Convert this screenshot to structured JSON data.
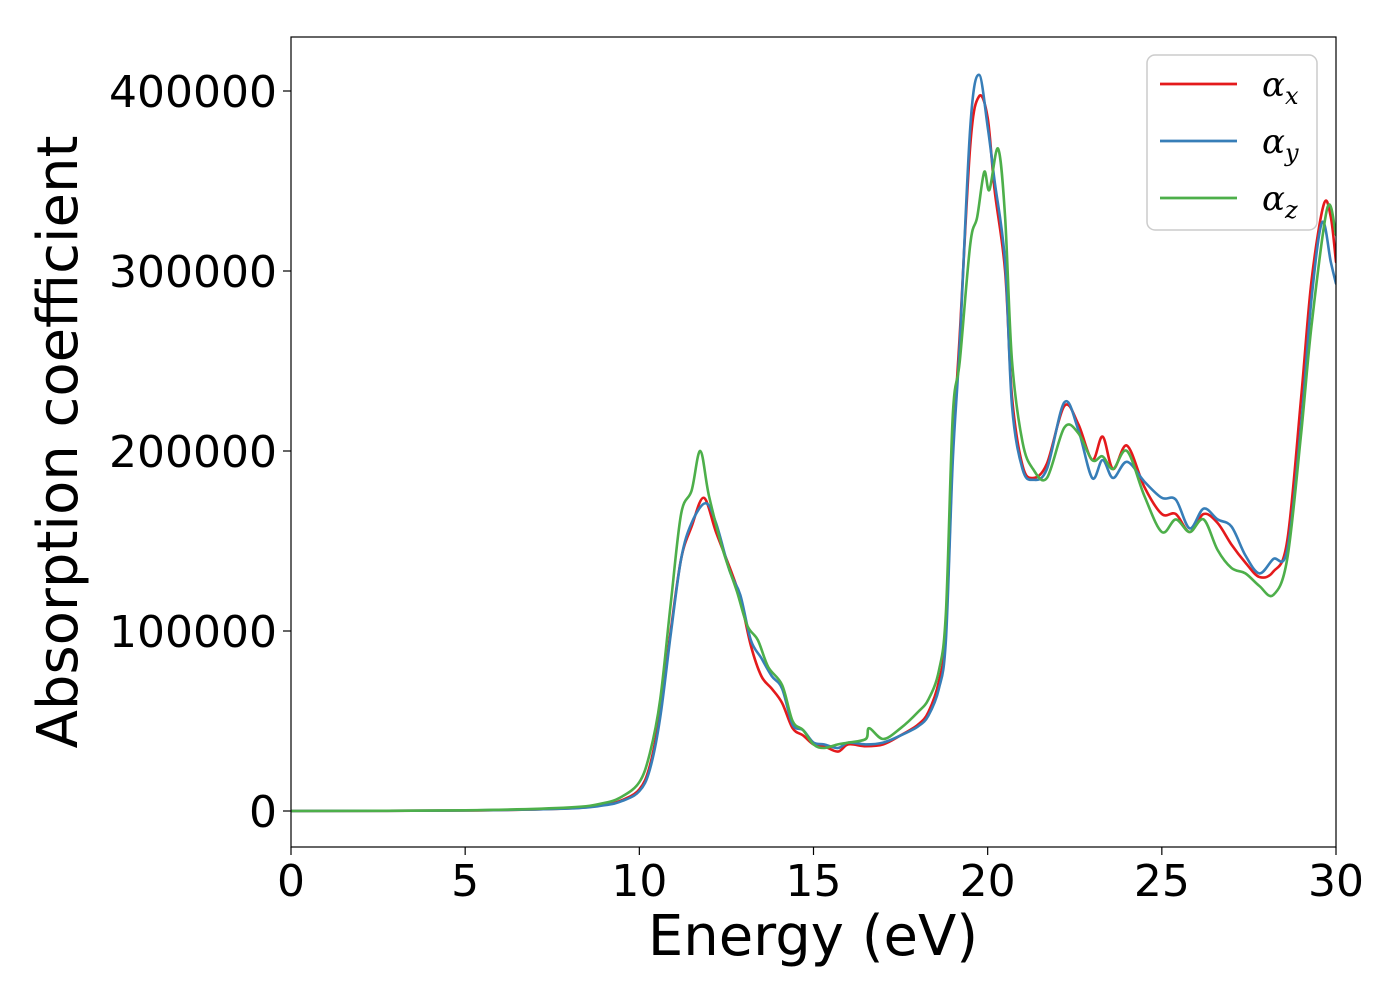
{
  "chart_data": {
    "type": "line",
    "xlabel": "Energy (eV)",
    "ylabel": "Absorption coefficient",
    "xlim": [
      0,
      30
    ],
    "ylim": [
      -20000,
      430000
    ],
    "xticks": [
      0,
      5,
      10,
      15,
      20,
      25,
      30
    ],
    "yticks": [
      0,
      100000,
      200000,
      300000,
      400000
    ],
    "grid": false,
    "legend_position": "top-right",
    "series": [
      {
        "name": "αx",
        "symbol": "α",
        "subscript": "x",
        "color": "#e41a1c",
        "points": [
          [
            0,
            0
          ],
          [
            5,
            300
          ],
          [
            8,
            1500
          ],
          [
            9,
            3500
          ],
          [
            9.5,
            6000
          ],
          [
            10,
            12000
          ],
          [
            10.3,
            25000
          ],
          [
            10.6,
            55000
          ],
          [
            10.9,
            100000
          ],
          [
            11.2,
            140000
          ],
          [
            11.5,
            158000
          ],
          [
            11.85,
            174000
          ],
          [
            12.2,
            155000
          ],
          [
            12.6,
            135000
          ],
          [
            12.9,
            118000
          ],
          [
            13.2,
            92000
          ],
          [
            13.5,
            75000
          ],
          [
            13.8,
            68000
          ],
          [
            14.1,
            60000
          ],
          [
            14.4,
            46000
          ],
          [
            14.7,
            42000
          ],
          [
            15.0,
            37000
          ],
          [
            15.3,
            36000
          ],
          [
            15.7,
            33000
          ],
          [
            16.0,
            37000
          ],
          [
            16.5,
            36000
          ],
          [
            17.0,
            37000
          ],
          [
            17.5,
            42000
          ],
          [
            18.0,
            48000
          ],
          [
            18.3,
            55000
          ],
          [
            18.6,
            72000
          ],
          [
            18.8,
            100000
          ],
          [
            19.0,
            200000
          ],
          [
            19.2,
            265000
          ],
          [
            19.5,
            370000
          ],
          [
            19.75,
            397000
          ],
          [
            20.0,
            385000
          ],
          [
            20.2,
            345000
          ],
          [
            20.5,
            300000
          ],
          [
            20.7,
            230000
          ],
          [
            21.0,
            192000
          ],
          [
            21.3,
            185000
          ],
          [
            21.7,
            193000
          ],
          [
            22.2,
            225000
          ],
          [
            22.6,
            215000
          ],
          [
            23.0,
            195000
          ],
          [
            23.3,
            208000
          ],
          [
            23.6,
            190000
          ],
          [
            24.0,
            203000
          ],
          [
            24.5,
            180000
          ],
          [
            25.0,
            165000
          ],
          [
            25.4,
            165000
          ],
          [
            25.8,
            155000
          ],
          [
            26.2,
            165000
          ],
          [
            26.6,
            160000
          ],
          [
            27.0,
            148000
          ],
          [
            27.4,
            138000
          ],
          [
            27.8,
            130000
          ],
          [
            28.2,
            133000
          ],
          [
            28.6,
            150000
          ],
          [
            29.0,
            230000
          ],
          [
            29.3,
            295000
          ],
          [
            29.65,
            337000
          ],
          [
            29.85,
            330000
          ],
          [
            30.0,
            305000
          ]
        ]
      },
      {
        "name": "αy",
        "symbol": "α",
        "subscript": "y",
        "color": "#377eb8",
        "points": [
          [
            0,
            0
          ],
          [
            5,
            300
          ],
          [
            8,
            1400
          ],
          [
            9,
            3200
          ],
          [
            9.5,
            5500
          ],
          [
            10,
            11000
          ],
          [
            10.3,
            23000
          ],
          [
            10.6,
            52000
          ],
          [
            10.9,
            98000
          ],
          [
            11.2,
            140000
          ],
          [
            11.5,
            160000
          ],
          [
            11.9,
            171000
          ],
          [
            12.2,
            160000
          ],
          [
            12.6,
            133000
          ],
          [
            12.9,
            120000
          ],
          [
            13.2,
            95000
          ],
          [
            13.5,
            85000
          ],
          [
            13.8,
            75000
          ],
          [
            14.1,
            68000
          ],
          [
            14.4,
            48000
          ],
          [
            14.7,
            45000
          ],
          [
            15.0,
            38000
          ],
          [
            15.3,
            37000
          ],
          [
            15.7,
            35000
          ],
          [
            16.0,
            38000
          ],
          [
            16.5,
            37000
          ],
          [
            17.0,
            38000
          ],
          [
            17.5,
            42000
          ],
          [
            18.0,
            47000
          ],
          [
            18.3,
            53000
          ],
          [
            18.6,
            68000
          ],
          [
            18.8,
            95000
          ],
          [
            19.0,
            195000
          ],
          [
            19.2,
            260000
          ],
          [
            19.5,
            380000
          ],
          [
            19.75,
            409000
          ],
          [
            20.0,
            380000
          ],
          [
            20.2,
            350000
          ],
          [
            20.5,
            305000
          ],
          [
            20.7,
            225000
          ],
          [
            21.0,
            190000
          ],
          [
            21.3,
            184000
          ],
          [
            21.7,
            190000
          ],
          [
            22.2,
            227000
          ],
          [
            22.6,
            212000
          ],
          [
            23.0,
            185000
          ],
          [
            23.3,
            195000
          ],
          [
            23.6,
            185000
          ],
          [
            24.0,
            194000
          ],
          [
            24.5,
            183000
          ],
          [
            25.0,
            174000
          ],
          [
            25.4,
            173000
          ],
          [
            25.8,
            157000
          ],
          [
            26.2,
            168000
          ],
          [
            26.6,
            162000
          ],
          [
            27.0,
            158000
          ],
          [
            27.4,
            142000
          ],
          [
            27.8,
            132000
          ],
          [
            28.2,
            140000
          ],
          [
            28.6,
            145000
          ],
          [
            29.0,
            215000
          ],
          [
            29.3,
            285000
          ],
          [
            29.6,
            327000
          ],
          [
            29.85,
            305000
          ],
          [
            30.0,
            293000
          ]
        ]
      },
      {
        "name": "αz",
        "symbol": "α",
        "subscript": "z",
        "color": "#4daf4a",
        "points": [
          [
            0,
            0
          ],
          [
            5,
            400
          ],
          [
            8,
            2000
          ],
          [
            9,
            4500
          ],
          [
            9.5,
            8000
          ],
          [
            10,
            16000
          ],
          [
            10.3,
            32000
          ],
          [
            10.6,
            62000
          ],
          [
            10.9,
            115000
          ],
          [
            11.2,
            165000
          ],
          [
            11.5,
            178000
          ],
          [
            11.75,
            200000
          ],
          [
            12.0,
            175000
          ],
          [
            12.4,
            145000
          ],
          [
            12.8,
            122000
          ],
          [
            13.1,
            103000
          ],
          [
            13.4,
            95000
          ],
          [
            13.7,
            80000
          ],
          [
            14.1,
            70000
          ],
          [
            14.4,
            50000
          ],
          [
            14.7,
            45000
          ],
          [
            15.0,
            37000
          ],
          [
            15.3,
            35000
          ],
          [
            15.7,
            37000
          ],
          [
            16.0,
            38000
          ],
          [
            16.5,
            40000
          ],
          [
            16.6,
            46000
          ],
          [
            17.0,
            40000
          ],
          [
            17.5,
            46000
          ],
          [
            18.0,
            55000
          ],
          [
            18.3,
            62000
          ],
          [
            18.6,
            78000
          ],
          [
            18.8,
            110000
          ],
          [
            19.0,
            220000
          ],
          [
            19.2,
            250000
          ],
          [
            19.5,
            315000
          ],
          [
            19.7,
            330000
          ],
          [
            19.9,
            355000
          ],
          [
            20.05,
            345000
          ],
          [
            20.3,
            368000
          ],
          [
            20.5,
            330000
          ],
          [
            20.7,
            250000
          ],
          [
            21.0,
            205000
          ],
          [
            21.3,
            190000
          ],
          [
            21.7,
            185000
          ],
          [
            22.2,
            213000
          ],
          [
            22.6,
            210000
          ],
          [
            23.0,
            195000
          ],
          [
            23.3,
            197000
          ],
          [
            23.6,
            190000
          ],
          [
            24.0,
            200000
          ],
          [
            24.5,
            175000
          ],
          [
            25.0,
            155000
          ],
          [
            25.4,
            162000
          ],
          [
            25.8,
            155000
          ],
          [
            26.2,
            162000
          ],
          [
            26.6,
            145000
          ],
          [
            27.0,
            135000
          ],
          [
            27.4,
            132000
          ],
          [
            27.8,
            125000
          ],
          [
            28.2,
            120000
          ],
          [
            28.6,
            140000
          ],
          [
            29.0,
            210000
          ],
          [
            29.3,
            270000
          ],
          [
            29.75,
            335000
          ],
          [
            30.0,
            320000
          ]
        ]
      }
    ]
  }
}
